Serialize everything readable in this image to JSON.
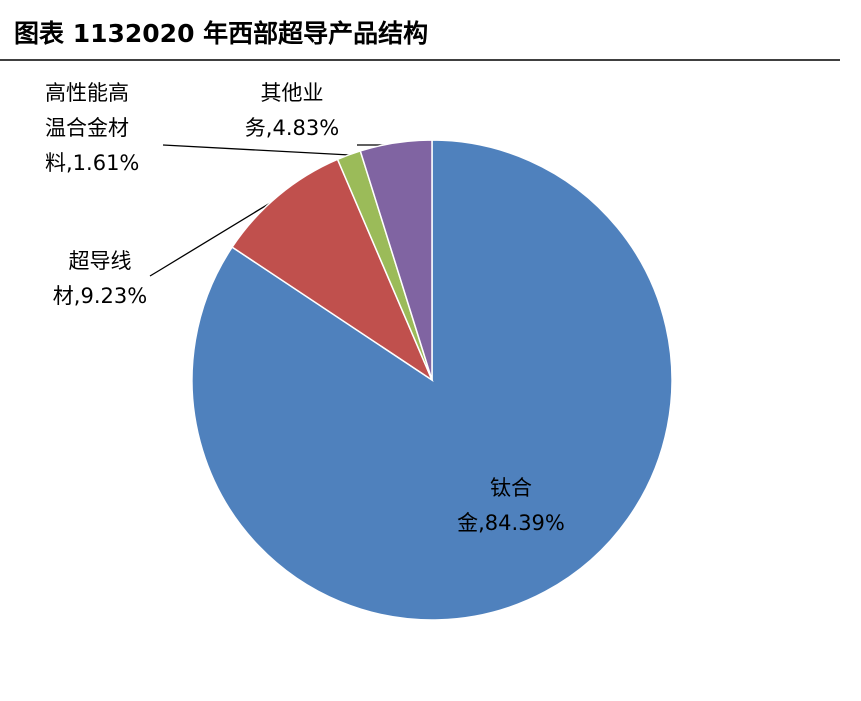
{
  "chart_data": {
    "type": "pie",
    "title": "图表 1132020 年西部超导产品结构",
    "values": [
      84.39,
      9.23,
      1.61,
      4.83
    ],
    "value_labels": [
      "钛合金,84.39%",
      "超导线材,9.23%",
      "高性能高温合金材料,1.61%",
      "其他业务,4.83%"
    ],
    "colors": [
      "#4f81bd",
      "#c0504d",
      "#9bbb59",
      "#8064a2"
    ]
  }
}
